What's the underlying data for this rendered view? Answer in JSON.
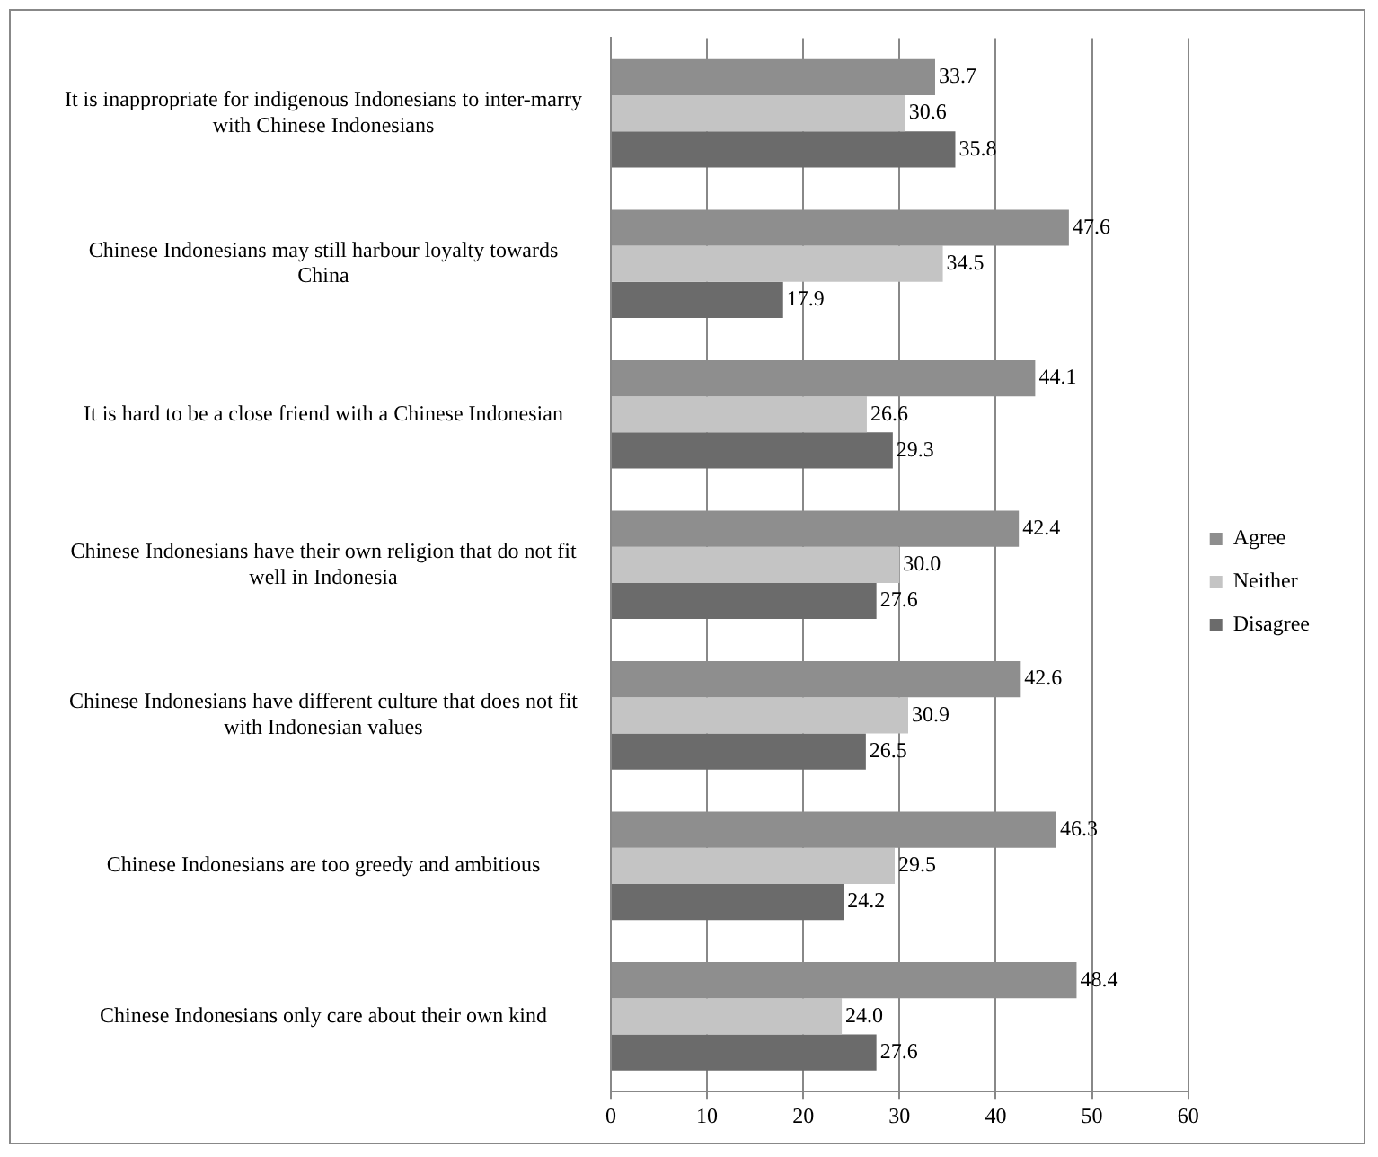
{
  "chart_data": {
    "type": "bar",
    "orientation": "horizontal",
    "categories": [
      "It is inappropriate for indigenous Indonesians to inter-marry with Chinese Indonesians",
      "Chinese Indonesians may still harbour loyalty towards China",
      "It is hard to be a close friend with a Chinese Indonesian",
      "Chinese Indonesians have their own religion that do not fit well in Indonesia",
      "Chinese Indonesians have different culture that does not fit with Indonesian values",
      "Chinese Indonesians are too greedy and ambitious",
      "Chinese Indonesians only care about their own kind"
    ],
    "series": [
      {
        "name": "Agree",
        "color": "#8e8e8e",
        "values": [
          33.7,
          47.6,
          44.1,
          42.4,
          42.6,
          46.3,
          48.4
        ],
        "value_labels": [
          "33.7",
          "47.6",
          "44.1",
          "42.4",
          "42.6",
          "46.3",
          "48.4"
        ]
      },
      {
        "name": "Neither",
        "color": "#c4c4c4",
        "values": [
          30.6,
          34.5,
          26.6,
          30.0,
          30.9,
          29.5,
          24.0
        ],
        "value_labels": [
          "30.6",
          "34.5",
          "26.6",
          "30.0",
          "30.9",
          "29.5",
          "24.0"
        ]
      },
      {
        "name": "Disagree",
        "color": "#6b6b6b",
        "values": [
          35.8,
          17.9,
          29.3,
          27.6,
          26.5,
          24.2,
          27.6
        ],
        "value_labels": [
          "35.8",
          "17.9",
          "29.3",
          "27.6",
          "26.5",
          "24.2",
          "27.6"
        ]
      }
    ],
    "xlim": [
      0,
      60
    ],
    "xticks": [
      0,
      10,
      20,
      30,
      40,
      50,
      60
    ],
    "grid": "x",
    "legend": "right"
  }
}
